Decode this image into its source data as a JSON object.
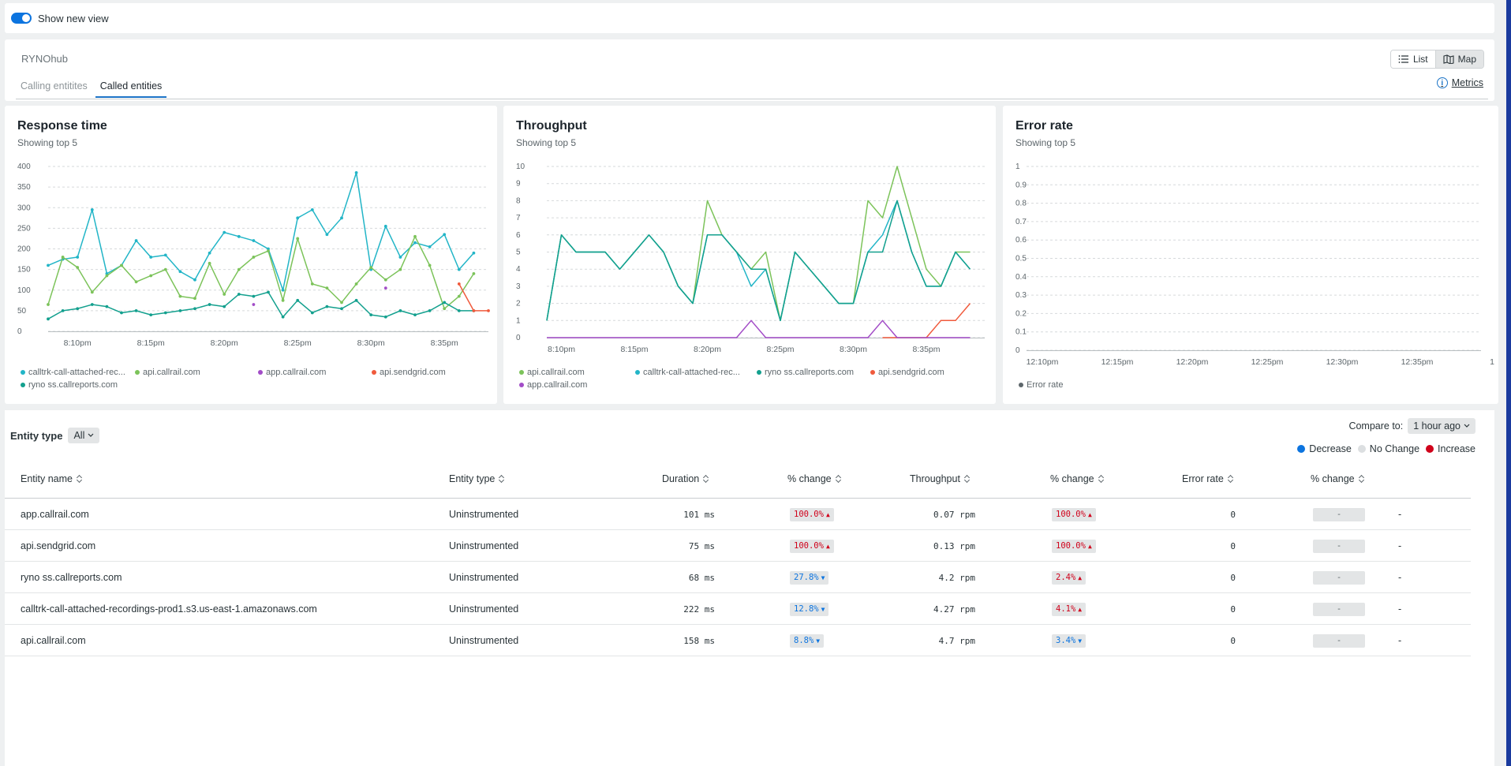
{
  "topbar": {
    "show_new_view": "Show new view"
  },
  "header": {
    "app_title": "RYNOhub",
    "view_list": "List",
    "view_map": "Map",
    "tabs": [
      "Calling entitites",
      "Called entities"
    ],
    "metrics_link": "Metrics"
  },
  "colors": {
    "calltrk": "#22b5c7",
    "api_callrail": "#7cc35a",
    "app_callrail": "#a24cc7",
    "api_sendgrid": "#f05a3c",
    "ryno": "#13a08e",
    "decrease": "#0c74df",
    "no_change": "#dcdfe1",
    "increase": "#d0021b"
  },
  "charts": {
    "response_time": {
      "title": "Response time",
      "subtitle": "Showing top 5",
      "legend": [
        {
          "name": "calltrk-call-attached-rec...",
          "color_key": "calltrk"
        },
        {
          "name": "api.callrail.com",
          "color_key": "api_callrail"
        },
        {
          "name": "app.callrail.com",
          "color_key": "app_callrail"
        },
        {
          "name": "api.sendgrid.com",
          "color_key": "api_sendgrid"
        },
        {
          "name": "ryno ss.callreports.com",
          "color_key": "ryno"
        }
      ]
    },
    "throughput": {
      "title": "Throughput",
      "subtitle": "Showing top 5",
      "legend": [
        {
          "name": "api.callrail.com",
          "color_key": "api_callrail"
        },
        {
          "name": "calltrk-call-attached-rec...",
          "color_key": "calltrk"
        },
        {
          "name": "ryno ss.callreports.com",
          "color_key": "ryno"
        },
        {
          "name": "api.sendgrid.com",
          "color_key": "api_sendgrid"
        },
        {
          "name": "app.callrail.com",
          "color_key": "app_callrail"
        }
      ]
    },
    "error_rate": {
      "title": "Error rate",
      "subtitle": "Showing top 5",
      "legend": [
        {
          "name": "Error rate",
          "color_key": "err"
        }
      ]
    }
  },
  "chart_data": [
    {
      "type": "line",
      "title": "Response time",
      "ylim": [
        0,
        400
      ],
      "yticks": [
        0,
        50,
        100,
        150,
        200,
        250,
        300,
        350,
        400
      ],
      "xtick_labels": [
        "8:10pm",
        "8:15pm",
        "8:20pm",
        "8:25pm",
        "8:30pm",
        "8:35pm"
      ],
      "xtick_positions": [
        2,
        7,
        12,
        17,
        22,
        27
      ],
      "x": [
        0,
        1,
        2,
        3,
        4,
        5,
        6,
        7,
        8,
        9,
        10,
        11,
        12,
        13,
        14,
        15,
        16,
        17,
        18,
        19,
        20,
        21,
        22,
        23,
        24,
        25,
        26,
        27,
        28,
        29,
        30
      ],
      "series": [
        {
          "name": "calltrk-call-attached-rec...",
          "color_key": "calltrk",
          "values": [
            160,
            175,
            180,
            295,
            140,
            160,
            220,
            180,
            185,
            145,
            125,
            190,
            240,
            230,
            220,
            200,
            100,
            275,
            295,
            235,
            275,
            385,
            150,
            255,
            180,
            215,
            205,
            235,
            150,
            190,
            null
          ]
        },
        {
          "name": "api.callrail.com",
          "color_key": "api_callrail",
          "values": [
            65,
            180,
            155,
            95,
            135,
            160,
            120,
            135,
            150,
            85,
            80,
            165,
            90,
            150,
            180,
            195,
            75,
            225,
            115,
            105,
            70,
            115,
            155,
            125,
            150,
            230,
            160,
            55,
            85,
            140,
            null
          ]
        },
        {
          "name": "ryno ss.callreports.com",
          "color_key": "ryno",
          "values": [
            30,
            50,
            55,
            65,
            60,
            45,
            50,
            40,
            45,
            50,
            55,
            65,
            60,
            90,
            85,
            95,
            35,
            75,
            45,
            60,
            55,
            75,
            40,
            35,
            50,
            40,
            50,
            70,
            50,
            50,
            null
          ]
        },
        {
          "name": "app.callrail.com",
          "color_key": "app_callrail",
          "values": [
            null,
            null,
            null,
            null,
            null,
            null,
            null,
            null,
            null,
            null,
            null,
            null,
            null,
            null,
            65,
            null,
            null,
            null,
            null,
            null,
            null,
            null,
            null,
            105,
            null,
            null,
            null,
            null,
            null,
            null,
            null
          ]
        },
        {
          "name": "api.sendgrid.com",
          "color_key": "api_sendgrid",
          "values": [
            null,
            null,
            null,
            null,
            null,
            null,
            null,
            null,
            null,
            null,
            null,
            null,
            null,
            null,
            null,
            null,
            null,
            null,
            null,
            null,
            null,
            null,
            null,
            null,
            null,
            null,
            null,
            null,
            115,
            50,
            50
          ]
        }
      ]
    },
    {
      "type": "line",
      "title": "Throughput",
      "ylim": [
        0,
        10
      ],
      "yticks": [
        0,
        1,
        2,
        3,
        4,
        5,
        6,
        7,
        8,
        9,
        10
      ],
      "xtick_labels": [
        "8:10pm",
        "8:15pm",
        "8:20pm",
        "8:25pm",
        "8:30pm",
        "8:35pm"
      ],
      "xtick_positions": [
        1,
        6,
        11,
        16,
        21,
        26
      ],
      "x": [
        0,
        1,
        2,
        3,
        4,
        5,
        6,
        7,
        8,
        9,
        10,
        11,
        12,
        13,
        14,
        15,
        16,
        17,
        18,
        19,
        20,
        21,
        22,
        23,
        24,
        25,
        26,
        27,
        28,
        29,
        30
      ],
      "series": [
        {
          "name": "api.callrail.com",
          "color_key": "api_callrail",
          "values": [
            1,
            6,
            5,
            5,
            5,
            4,
            5,
            6,
            5,
            3,
            2,
            8,
            6,
            5,
            4,
            5,
            1,
            5,
            4,
            3,
            2,
            2,
            8,
            7,
            10,
            7,
            4,
            3,
            5,
            5,
            null
          ]
        },
        {
          "name": "calltrk-call-attached-rec...",
          "color_key": "calltrk",
          "values": [
            1,
            6,
            5,
            5,
            5,
            4,
            5,
            6,
            5,
            3,
            2,
            6,
            6,
            5,
            3,
            4,
            1,
            5,
            4,
            3,
            2,
            2,
            5,
            6,
            8,
            5,
            3,
            3,
            5,
            4,
            null
          ]
        },
        {
          "name": "ryno ss.callreports.com",
          "color_key": "ryno",
          "values": [
            1,
            6,
            5,
            5,
            5,
            4,
            5,
            6,
            5,
            3,
            2,
            6,
            6,
            5,
            4,
            4,
            1,
            5,
            4,
            3,
            2,
            2,
            5,
            5,
            8,
            5,
            3,
            3,
            5,
            4,
            null
          ]
        },
        {
          "name": "api.sendgrid.com",
          "color_key": "api_sendgrid",
          "values": [
            null,
            null,
            null,
            null,
            null,
            null,
            null,
            null,
            null,
            null,
            null,
            null,
            null,
            null,
            null,
            null,
            null,
            null,
            null,
            null,
            null,
            null,
            null,
            0,
            0,
            0,
            0,
            1,
            1,
            2,
            null
          ]
        },
        {
          "name": "app.callrail.com",
          "color_key": "app_callrail",
          "values": [
            0,
            0,
            0,
            0,
            0,
            0,
            0,
            0,
            0,
            0,
            0,
            0,
            0,
            0,
            1,
            0,
            0,
            0,
            0,
            0,
            0,
            0,
            0,
            1,
            0,
            0,
            0,
            0,
            0,
            0,
            null
          ]
        }
      ]
    },
    {
      "type": "line",
      "title": "Error rate",
      "ylim": [
        0,
        1
      ],
      "yticks": [
        0,
        0.1,
        0.2,
        0.3,
        0.4,
        0.5,
        0.6,
        0.7,
        0.8,
        0.9,
        1
      ],
      "ytick_labels": [
        "0",
        "0.1",
        "0.2",
        "0.3",
        "0.4",
        "0.5",
        "0.6",
        "0.7",
        "0.8",
        "0.9",
        "1"
      ],
      "xtick_labels": [
        "12:10pm",
        "12:15pm",
        "12:20pm",
        "12:25pm",
        "12:30pm",
        "12:35pm",
        "1"
      ],
      "series": []
    }
  ],
  "table": {
    "entity_type_label": "Entity type",
    "entity_type_value": "All",
    "compare_label": "Compare to:",
    "compare_value": "1 hour ago",
    "key": {
      "decrease": "Decrease",
      "no_change": "No Change",
      "increase": "Increase"
    },
    "columns": [
      "Entity name",
      "Entity type",
      "Duration",
      "% change",
      "Throughput",
      "% change",
      "Error rate",
      "% change"
    ],
    "rows": [
      {
        "name": "app.callrail.com",
        "type": "Uninstrumented",
        "duration": "101 ms",
        "dur_change": "100.0%",
        "dur_dir": "up",
        "throughput": "0.07 rpm",
        "thr_change": "100.0%",
        "thr_dir": "up",
        "error_rate": "0",
        "err_change": "-",
        "trail": "-"
      },
      {
        "name": "api.sendgrid.com",
        "type": "Uninstrumented",
        "duration": "75 ms",
        "dur_change": "100.0%",
        "dur_dir": "up",
        "throughput": "0.13 rpm",
        "thr_change": "100.0%",
        "thr_dir": "up",
        "error_rate": "0",
        "err_change": "-",
        "trail": "-"
      },
      {
        "name": "ryno ss.callreports.com",
        "type": "Uninstrumented",
        "duration": "68 ms",
        "dur_change": "27.8%",
        "dur_dir": "down",
        "throughput": "4.2 rpm",
        "thr_change": "2.4%",
        "thr_dir": "up",
        "error_rate": "0",
        "err_change": "-",
        "trail": "-"
      },
      {
        "name": "calltrk-call-attached-recordings-prod1.s3.us-east-1.amazonaws.com",
        "type": "Uninstrumented",
        "duration": "222 ms",
        "dur_change": "12.8%",
        "dur_dir": "down",
        "throughput": "4.27 rpm",
        "thr_change": "4.1%",
        "thr_dir": "up",
        "error_rate": "0",
        "err_change": "-",
        "trail": "-"
      },
      {
        "name": "api.callrail.com",
        "type": "Uninstrumented",
        "duration": "158 ms",
        "dur_change": "8.8%",
        "dur_dir": "down",
        "throughput": "4.7 rpm",
        "thr_change": "3.4%",
        "thr_dir": "down",
        "error_rate": "0",
        "err_change": "-",
        "trail": "-"
      }
    ]
  }
}
